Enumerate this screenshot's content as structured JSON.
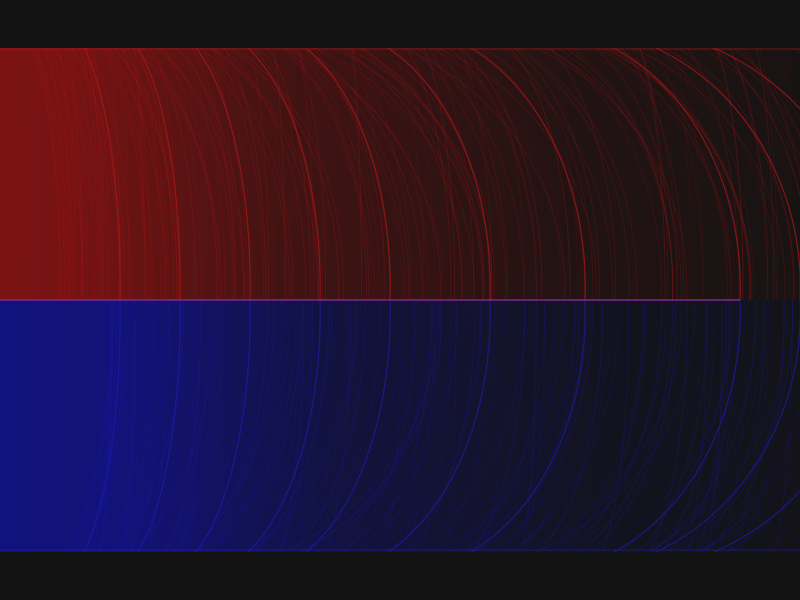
{
  "background_color": "#131313",
  "top_panel": {
    "color": "#b01818",
    "fill_color": "#7c1313"
  },
  "bottom_panel": {
    "color": "#1c1cb0",
    "fill_color": "#12127c"
  },
  "divider_color": "#8a2a9a"
}
